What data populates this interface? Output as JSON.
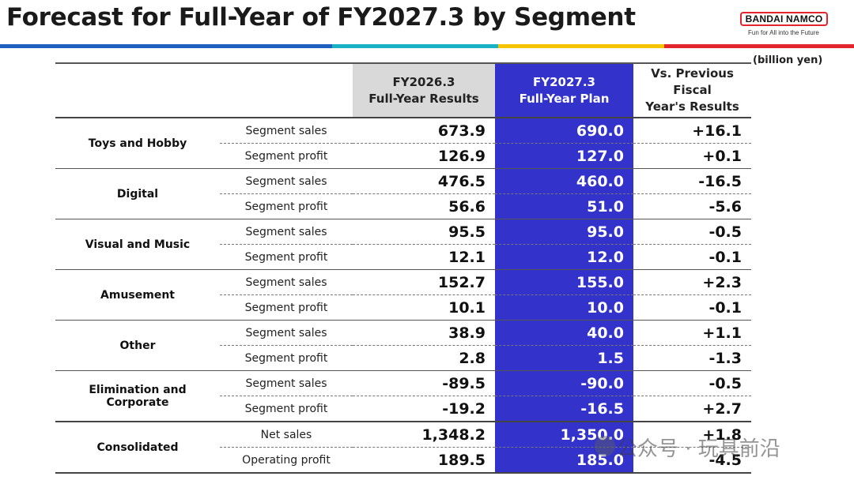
{
  "header": {
    "title": "Forecast for Full-Year of FY2027.3 by Segment",
    "logo_text": "BANDAI NAMCO",
    "logo_tagline": "Fun for All into the Future",
    "unit": "(billion yen)"
  },
  "colors": {
    "stripe_blue": "#1f5fbf",
    "stripe_teal": "#18b2c4",
    "stripe_yellow": "#f5c400",
    "stripe_red": "#e3262e",
    "plan_column": "#3333cc",
    "results_header": "#d9d9d9"
  },
  "columns": {
    "results": "FY2026.3\nFull-Year Results",
    "plan": "FY2027.3\nFull-Year Plan",
    "vs": "Vs. Previous\nFiscal\nYear's Results"
  },
  "segments": [
    {
      "name": "Toys and Hobby",
      "rows": [
        {
          "item": "Segment sales",
          "results": "673.9",
          "plan": "690.0",
          "vs": "+16.1"
        },
        {
          "item": "Segment profit",
          "results": "126.9",
          "plan": "127.0",
          "vs": "+0.1"
        }
      ]
    },
    {
      "name": "Digital",
      "rows": [
        {
          "item": "Segment sales",
          "results": "476.5",
          "plan": "460.0",
          "vs": "-16.5"
        },
        {
          "item": "Segment profit",
          "results": "56.6",
          "plan": "51.0",
          "vs": "-5.6"
        }
      ]
    },
    {
      "name": "Visual and Music",
      "rows": [
        {
          "item": "Segment sales",
          "results": "95.5",
          "plan": "95.0",
          "vs": "-0.5"
        },
        {
          "item": "Segment profit",
          "results": "12.1",
          "plan": "12.0",
          "vs": "-0.1"
        }
      ]
    },
    {
      "name": "Amusement",
      "rows": [
        {
          "item": "Segment sales",
          "results": "152.7",
          "plan": "155.0",
          "vs": "+2.3"
        },
        {
          "item": "Segment profit",
          "results": "10.1",
          "plan": "10.0",
          "vs": "-0.1"
        }
      ]
    },
    {
      "name": "Other",
      "rows": [
        {
          "item": "Segment sales",
          "results": "38.9",
          "plan": "40.0",
          "vs": "+1.1"
        },
        {
          "item": "Segment profit",
          "results": "2.8",
          "plan": "1.5",
          "vs": "-1.3"
        }
      ]
    },
    {
      "name": "Elimination and\nCorporate",
      "rows": [
        {
          "item": "Segment sales",
          "results": "-89.5",
          "plan": "-90.0",
          "vs": "-0.5"
        },
        {
          "item": "Segment profit",
          "results": "-19.2",
          "plan": "-16.5",
          "vs": "+2.7"
        }
      ]
    },
    {
      "name": "Consolidated",
      "rows": [
        {
          "item": "Net sales",
          "results": "1,348.2",
          "plan": "1,350.0",
          "vs": "+1.8"
        },
        {
          "item": "Operating profit",
          "results": "189.5",
          "plan": "185.0",
          "vs": "-4.5"
        }
      ]
    }
  ],
  "watermark": "公众号 · 玩具前沿"
}
